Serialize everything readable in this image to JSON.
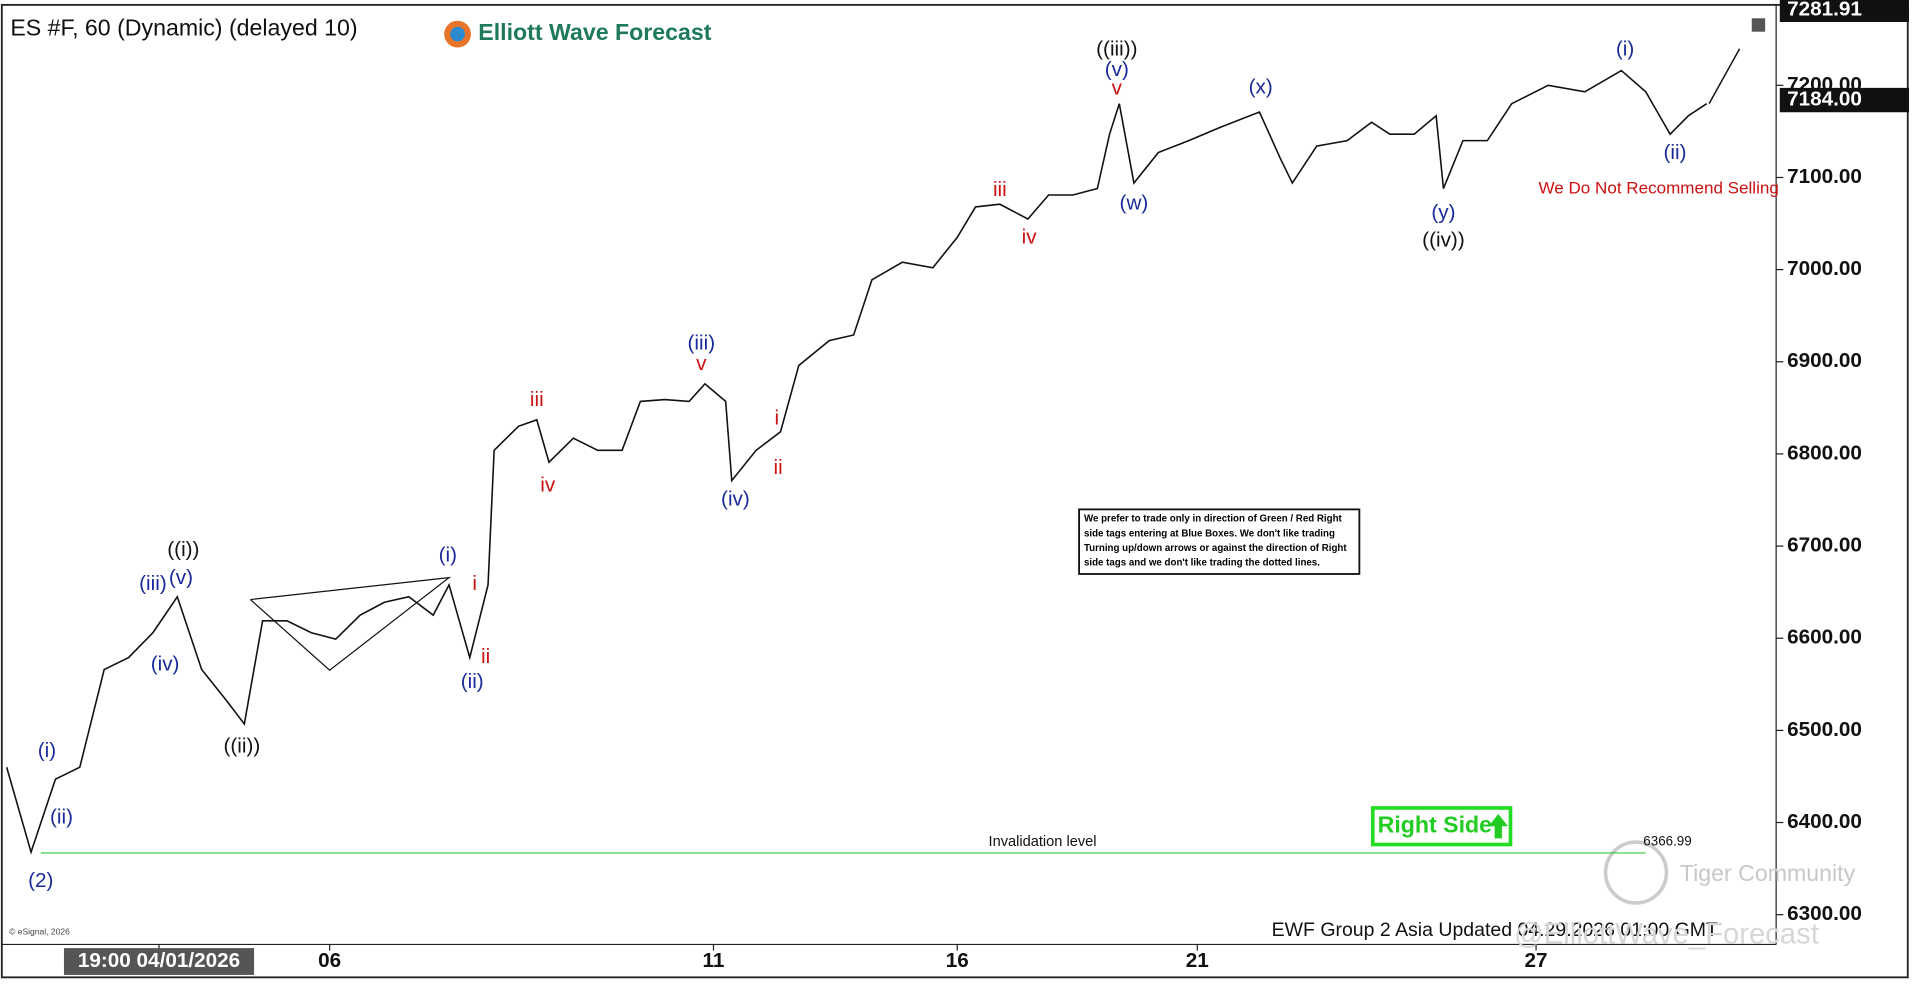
{
  "chart_data": {
    "type": "line",
    "title": "ES #F, 60 (Dynamic) (delayed 10)",
    "x": [
      0.5,
      2.5,
      4.5,
      6.5,
      8.5,
      10.5,
      12.5,
      14.5,
      16.5,
      18.5,
      20,
      21.5,
      23.5,
      25.5,
      27.5,
      29.5,
      31.5,
      33.5,
      35.5,
      36.8,
      38.5,
      40,
      40.5,
      42.5,
      44,
      45,
      47,
      49,
      51,
      52.5,
      54.5,
      56.5,
      57.8,
      59.5,
      60,
      62,
      64,
      65.5,
      68,
      70,
      71.5,
      74,
      76.5,
      78.5,
      80,
      82,
      84.3,
      86,
      88,
      90,
      91,
      91.8,
      93,
      95,
      97.5,
      100,
      103.3,
      105,
      106,
      108,
      110.5,
      112.5,
      114,
      116,
      117.8,
      118.4,
      120,
      122,
      124,
      127,
      130,
      133,
      135,
      137,
      138.5,
      140
    ],
    "series": [
      {
        "name": "ES #F",
        "color": "#111111",
        "values": [
          6460,
          6368,
          6447,
          6460,
          6566,
          6579,
          6606,
          6645,
          6566,
          6533,
          6507,
          6619,
          6619,
          6606,
          6599,
          6625,
          6639,
          6645,
          6625,
          6658,
          6579,
          6658,
          6804,
          6830,
          6837,
          6791,
          6817,
          6804,
          6804,
          6857,
          6859,
          6857,
          6876,
          6857,
          6771,
          6804,
          6824,
          6896,
          6923,
          6929,
          6989,
          7008,
          7002,
          7035,
          7068,
          7071,
          7055,
          7081,
          7081,
          7088,
          7147,
          7180,
          7094,
          7127,
          7140,
          7154,
          7171,
          7121,
          7094,
          7134,
          7140,
          7160,
          7147,
          7147,
          7167,
          7088,
          7140,
          7140,
          7180,
          7200,
          7193,
          7216,
          7193,
          7147,
          7167,
          7180
        ]
      }
    ],
    "xlim": [
      0.5,
      145.5
    ],
    "xticks": [
      {
        "value": 13,
        "label": "19:00 04/01/2026"
      },
      {
        "value": 27,
        "label": "06"
      },
      {
        "value": 58.5,
        "label": "11"
      },
      {
        "value": 78.5,
        "label": "16"
      },
      {
        "value": 98.2,
        "label": "21"
      },
      {
        "value": 126,
        "label": "27"
      }
    ],
    "ylim": [
      6273,
      7282
    ],
    "yticks": [
      {
        "value": 6300,
        "label": "6300.00"
      },
      {
        "value": 6400,
        "label": "6400.00"
      },
      {
        "value": 6500,
        "label": "6500.00"
      },
      {
        "value": 6600,
        "label": "6600.00"
      },
      {
        "value": 6700,
        "label": "6700.00"
      },
      {
        "value": 6800,
        "label": "6800.00"
      },
      {
        "value": 6900,
        "label": "6900.00"
      },
      {
        "value": 7000,
        "label": "7000.00"
      },
      {
        "value": 7100,
        "label": "7100.00"
      },
      {
        "value": 7200,
        "label": "7200.00"
      }
    ],
    "high": {
      "value": 7281.91,
      "label": "7281.91"
    },
    "last": {
      "value": 7184,
      "label": "7184.00"
    },
    "invalidation": {
      "value": 6366.99,
      "label": "6366.99",
      "text": "Invalidation level",
      "color": "#33cc33"
    },
    "annotations": [
      {
        "label": "(2)",
        "x": 3.3,
        "y": 6336,
        "color": "#1a2a9c"
      },
      {
        "label": "(i)",
        "x": 3.8,
        "y": 6477,
        "color": "#1a2a9c"
      },
      {
        "label": "(ii)",
        "x": 5,
        "y": 6405,
        "color": "#1a2a9c"
      },
      {
        "label": "(iii)",
        "x": 12.5,
        "y": 6658,
        "color": "#1a2a9c"
      },
      {
        "label": "(v)",
        "x": 14.8,
        "y": 6665,
        "color": "#1a2a9c"
      },
      {
        "label": "((i))",
        "x": 15,
        "y": 6695,
        "color": "#111111"
      },
      {
        "label": "(iv)",
        "x": 13.5,
        "y": 6571,
        "color": "#1a2a9c"
      },
      {
        "label": "((ii))",
        "x": 19.8,
        "y": 6482,
        "color": "#111111"
      },
      {
        "label": "(i)",
        "x": 36.7,
        "y": 6689,
        "color": "#1a2a9c"
      },
      {
        "label": "(ii)",
        "x": 38.7,
        "y": 6552,
        "color": "#1a2a9c"
      },
      {
        "label": "i",
        "x": 38.9,
        "y": 6658,
        "color": "#cc1111"
      },
      {
        "label": "ii",
        "x": 39.8,
        "y": 6579,
        "color": "#cc1111"
      },
      {
        "label": "iii",
        "x": 44,
        "y": 6858,
        "color": "#cc1111"
      },
      {
        "label": "iv",
        "x": 44.9,
        "y": 6765,
        "color": "#cc1111"
      },
      {
        "label": "(iii)",
        "x": 57.5,
        "y": 6919,
        "color": "#1a2a9c"
      },
      {
        "label": "v",
        "x": 57.5,
        "y": 6897,
        "color": "#cc1111"
      },
      {
        "label": "(iv)",
        "x": 60.3,
        "y": 6750,
        "color": "#1a2a9c"
      },
      {
        "label": "i",
        "x": 63.7,
        "y": 6838,
        "color": "#cc1111"
      },
      {
        "label": "ii",
        "x": 63.8,
        "y": 6784,
        "color": "#cc1111"
      },
      {
        "label": "iii",
        "x": 82,
        "y": 7086,
        "color": "#cc1111"
      },
      {
        "label": "iv",
        "x": 84.4,
        "y": 7034,
        "color": "#cc1111"
      },
      {
        "label": "((iii))",
        "x": 91.6,
        "y": 7238,
        "color": "#111111"
      },
      {
        "label": "(v)",
        "x": 91.6,
        "y": 7216,
        "color": "#1a2a9c"
      },
      {
        "label": "v",
        "x": 91.6,
        "y": 7196,
        "color": "#cc1111"
      },
      {
        "label": "(w)",
        "x": 93,
        "y": 7071,
        "color": "#1a2a9c"
      },
      {
        "label": "(x)",
        "x": 103.4,
        "y": 7197,
        "color": "#1a2a9c"
      },
      {
        "label": "(y)",
        "x": 118.4,
        "y": 7061,
        "color": "#1a2a9c"
      },
      {
        "label": "((iv))",
        "x": 118.4,
        "y": 7031,
        "color": "#111111"
      },
      {
        "label": "(i)",
        "x": 133.3,
        "y": 7238,
        "color": "#1a2a9c"
      },
      {
        "label": "(ii)",
        "x": 137.4,
        "y": 7126,
        "color": "#1a2a9c"
      }
    ]
  },
  "header": {
    "logo": "Elliott Wave Forecast"
  },
  "notes": {
    "warning": "We Do Not Recommend Selling",
    "box": [
      "We prefer to trade only in direction of Green / Red Right",
      "side tags entering at Blue Boxes. We don't like trading",
      "Turning up/down arrows or against the direction of Right",
      "side tags and we don't like trading the dotted lines."
    ],
    "right_side": "Right Side",
    "updated": "EWF Group 2 Asia Updated 04.29.2026 01:00 GMT",
    "copyright": "© eSignal, 2026",
    "watermark": "Tiger Community",
    "handle": "@ElliottWave_Forecast"
  }
}
